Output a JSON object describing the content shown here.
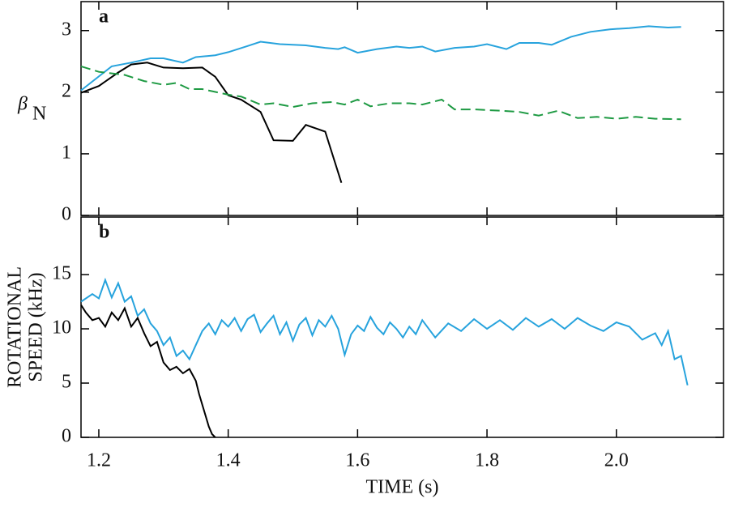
{
  "chart_data": [
    {
      "type": "line",
      "annotation": "a",
      "ylabel": "β",
      "ylabel_sub": "N",
      "xlim": [
        1.1725,
        2.1656
      ],
      "ylim": [
        0,
        3.47
      ],
      "yticks": [
        0,
        1,
        2,
        3
      ],
      "series": [
        {
          "color": "#27a3dd",
          "dash": false,
          "x": [
            1.1725,
            1.22,
            1.25,
            1.28,
            1.3,
            1.33,
            1.35,
            1.38,
            1.4,
            1.43,
            1.45,
            1.48,
            1.52,
            1.55,
            1.57,
            1.58,
            1.6,
            1.63,
            1.66,
            1.68,
            1.7,
            1.72,
            1.75,
            1.78,
            1.8,
            1.83,
            1.85,
            1.88,
            1.9,
            1.93,
            1.96,
            1.99,
            2.02,
            2.05,
            2.08,
            2.1
          ],
          "values": [
            2.03,
            2.42,
            2.48,
            2.55,
            2.55,
            2.48,
            2.57,
            2.6,
            2.65,
            2.75,
            2.82,
            2.78,
            2.76,
            2.72,
            2.7,
            2.73,
            2.64,
            2.7,
            2.74,
            2.72,
            2.74,
            2.66,
            2.72,
            2.74,
            2.78,
            2.7,
            2.8,
            2.8,
            2.77,
            2.9,
            2.98,
            3.02,
            3.04,
            3.07,
            3.05,
            3.06
          ]
        },
        {
          "color": "#000000",
          "dash": false,
          "x": [
            1.1725,
            1.2,
            1.23,
            1.25,
            1.275,
            1.3,
            1.33,
            1.36,
            1.38,
            1.4,
            1.42,
            1.45,
            1.47,
            1.5,
            1.52,
            1.55,
            1.575
          ],
          "values": [
            1.99,
            2.1,
            2.32,
            2.45,
            2.48,
            2.4,
            2.39,
            2.4,
            2.25,
            1.95,
            1.88,
            1.68,
            1.22,
            1.21,
            1.47,
            1.36,
            0.53
          ]
        },
        {
          "color": "#1e9a43",
          "dash": true,
          "x": [
            1.1725,
            1.2,
            1.24,
            1.27,
            1.3,
            1.32,
            1.34,
            1.36,
            1.4,
            1.42,
            1.45,
            1.47,
            1.5,
            1.53,
            1.56,
            1.58,
            1.6,
            1.62,
            1.65,
            1.68,
            1.7,
            1.73,
            1.75,
            1.78,
            1.82,
            1.85,
            1.88,
            1.91,
            1.94,
            1.97,
            2.0,
            2.03,
            2.06,
            2.1
          ],
          "values": [
            2.42,
            2.33,
            2.28,
            2.18,
            2.12,
            2.15,
            2.05,
            2.05,
            1.96,
            1.93,
            1.8,
            1.82,
            1.76,
            1.82,
            1.84,
            1.8,
            1.88,
            1.77,
            1.82,
            1.82,
            1.8,
            1.88,
            1.72,
            1.72,
            1.7,
            1.68,
            1.62,
            1.7,
            1.58,
            1.6,
            1.57,
            1.6,
            1.57,
            1.56
          ]
        }
      ]
    },
    {
      "type": "line",
      "annotation": "b",
      "ylabel": [
        "ROTATIONAL",
        "SPEED (kHz)"
      ],
      "xlabel": "TIME (s)",
      "xlim": [
        1.1725,
        2.1656
      ],
      "ylim": [
        0,
        20.3
      ],
      "yticks": [
        0,
        5,
        10,
        15
      ],
      "xticks": [
        1.2,
        1.4,
        1.6,
        1.8,
        {
          "value": 2,
          "label": "2.0"
        }
      ],
      "series": [
        {
          "color": "#27a3dd",
          "dash": false,
          "x": [
            1.1725,
            1.19,
            1.2,
            1.21,
            1.22,
            1.23,
            1.24,
            1.25,
            1.26,
            1.27,
            1.28,
            1.29,
            1.3,
            1.31,
            1.32,
            1.33,
            1.34,
            1.35,
            1.36,
            1.37,
            1.38,
            1.39,
            1.4,
            1.41,
            1.42,
            1.43,
            1.44,
            1.45,
            1.46,
            1.47,
            1.48,
            1.49,
            1.5,
            1.51,
            1.52,
            1.53,
            1.54,
            1.55,
            1.56,
            1.57,
            1.58,
            1.59,
            1.6,
            1.61,
            1.62,
            1.63,
            1.64,
            1.65,
            1.66,
            1.67,
            1.68,
            1.69,
            1.7,
            1.72,
            1.74,
            1.76,
            1.78,
            1.8,
            1.82,
            1.84,
            1.86,
            1.88,
            1.9,
            1.92,
            1.94,
            1.96,
            1.98,
            2.0,
            2.02,
            2.04,
            2.06,
            2.07,
            2.08,
            2.09,
            2.1,
            2.11
          ],
          "values": [
            12.5,
            13.2,
            12.8,
            14.5,
            12.9,
            14.2,
            12.5,
            13.0,
            11.2,
            11.8,
            10.5,
            9.8,
            8.5,
            9.2,
            7.5,
            8.0,
            7.2,
            8.5,
            9.8,
            10.5,
            9.5,
            10.8,
            10.2,
            11.0,
            9.8,
            10.9,
            11.3,
            9.7,
            10.5,
            11.2,
            9.5,
            10.6,
            8.9,
            10.4,
            11.0,
            9.4,
            10.8,
            10.2,
            11.2,
            10.0,
            7.6,
            9.5,
            10.3,
            9.8,
            11.1,
            10.1,
            9.5,
            10.6,
            10.0,
            9.2,
            10.2,
            9.5,
            10.8,
            9.2,
            10.5,
            9.8,
            10.9,
            10.0,
            10.8,
            9.9,
            11.0,
            10.2,
            10.9,
            10.0,
            11.0,
            10.3,
            9.8,
            10.6,
            10.2,
            9.0,
            9.6,
            8.5,
            9.8,
            7.2,
            7.5,
            4.8
          ]
        },
        {
          "color": "#000000",
          "dash": false,
          "x": [
            1.1725,
            1.18,
            1.19,
            1.2,
            1.21,
            1.22,
            1.23,
            1.24,
            1.25,
            1.26,
            1.27,
            1.28,
            1.29,
            1.3,
            1.31,
            1.32,
            1.33,
            1.34,
            1.35,
            1.355,
            1.36,
            1.365,
            1.37,
            1.375,
            1.38
          ],
          "values": [
            12.2,
            11.5,
            10.8,
            11.0,
            10.2,
            11.5,
            10.8,
            11.9,
            10.2,
            11.0,
            9.6,
            8.4,
            8.8,
            6.9,
            6.2,
            6.5,
            5.9,
            6.3,
            5.2,
            4.0,
            3.0,
            2.0,
            1.0,
            0.3,
            0.0
          ]
        }
      ]
    }
  ]
}
